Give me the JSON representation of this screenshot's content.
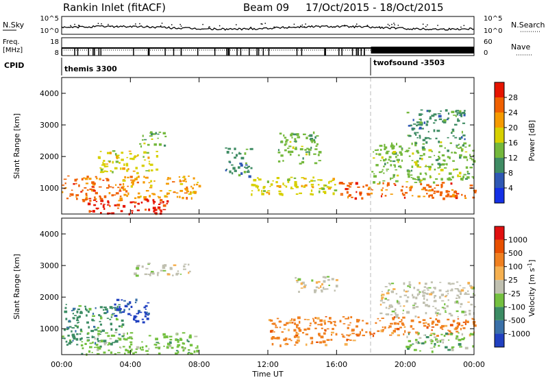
{
  "header": {
    "station": "Rankin Inlet (fitACF)",
    "beam": "Beam 09",
    "date_range": "17/Oct/2015 - 18/Oct/2015"
  },
  "noise_panel": {
    "left_label": "N.Sky",
    "right_label": "N.Search",
    "left_ticks": [
      "10^5",
      "10^0"
    ],
    "right_ticks": [
      "10^5",
      "10^0"
    ]
  },
  "freq_panel": {
    "left_label_line1": "Freq.",
    "left_label_line2": "[MHz]",
    "right_label": "Nave",
    "left_ticks": [
      "18",
      "8"
    ],
    "right_ticks": [
      "60",
      "0"
    ]
  },
  "cpid": {
    "label": "CPID",
    "segments": [
      {
        "name": "themis 3300",
        "start_hour": 0
      },
      {
        "name": "twofsound -3503",
        "start_hour": 18
      }
    ]
  },
  "time_axis": {
    "label": "Time UT",
    "ticks": [
      "00:00",
      "04:00",
      "08:00",
      "12:00",
      "16:00",
      "20:00",
      "00:00"
    ]
  },
  "range_axis": {
    "label": "Slant Range [km]",
    "ticks": [
      "1000",
      "2000",
      "3000",
      "4000"
    ]
  },
  "power_scale": {
    "title": "Power [dB]",
    "labels": [
      "4",
      "8",
      "12",
      "16",
      "20",
      "24",
      "28"
    ],
    "colors": [
      "#1430e6",
      "#2f58b4",
      "#3f8c64",
      "#74b83c",
      "#d7d000",
      "#f59a00",
      "#f06000",
      "#e61400"
    ]
  },
  "velocity_scale": {
    "title": "Velocity [m s",
    "title_sup": "-1",
    "title_end": "]",
    "labels": [
      "1000",
      "500",
      "100",
      "25",
      "-25",
      "-100",
      "-500",
      "-1000"
    ],
    "colors": [
      "#2040c0",
      "#3a70a8",
      "#3c8c64",
      "#74c040",
      "#c0c0b0",
      "#f5b050",
      "#f08020",
      "#e85000",
      "#e01010"
    ]
  },
  "chart_data": {
    "type": "heatmap",
    "title": "Rankin Inlet (fitACF)",
    "x_range_hours": [
      0,
      24
    ],
    "y_range_km": [
      180,
      4500
    ],
    "power_regions": [
      {
        "x": [
          0.0,
          3.5
        ],
        "y": [
          600,
          1400
        ],
        "level": 6
      },
      {
        "x": [
          1.5,
          6.5
        ],
        "y": [
          200,
          700
        ],
        "level": 7
      },
      {
        "x": [
          3.5,
          8.0
        ],
        "y": [
          700,
          1400
        ],
        "level": 5
      },
      {
        "x": [
          2.0,
          5.5
        ],
        "y": [
          1500,
          2200
        ],
        "level": 4
      },
      {
        "x": [
          4.5,
          6.0
        ],
        "y": [
          2300,
          2800
        ],
        "level": 3
      },
      {
        "x": [
          9.5,
          11.0
        ],
        "y": [
          1400,
          2300
        ],
        "level": 2
      },
      {
        "x": [
          11.0,
          16.0
        ],
        "y": [
          800,
          1400
        ],
        "level": 4
      },
      {
        "x": [
          12.5,
          15.0
        ],
        "y": [
          1800,
          2800
        ],
        "level": 3
      },
      {
        "x": [
          16.0,
          24.0
        ],
        "y": [
          700,
          1200
        ],
        "level": 6
      },
      {
        "x": [
          18.0,
          24.0
        ],
        "y": [
          1200,
          2500
        ],
        "level": 3
      },
      {
        "x": [
          20.0,
          23.5
        ],
        "y": [
          2500,
          3500
        ],
        "level": 2
      }
    ],
    "velocity_regions": [
      {
        "x": [
          0.0,
          3.5
        ],
        "y": [
          500,
          1800
        ],
        "level": 2
      },
      {
        "x": [
          3.0,
          5.0
        ],
        "y": [
          1200,
          2000
        ],
        "level": 0
      },
      {
        "x": [
          1.0,
          8.0
        ],
        "y": [
          200,
          900
        ],
        "level": 3
      },
      {
        "x": [
          4.0,
          7.5
        ],
        "y": [
          2700,
          3100
        ],
        "level": 4
      },
      {
        "x": [
          12.0,
          17.0
        ],
        "y": [
          500,
          1400
        ],
        "level": 6
      },
      {
        "x": [
          13.5,
          16.0
        ],
        "y": [
          2200,
          2700
        ],
        "level": 4
      },
      {
        "x": [
          17.0,
          24.0
        ],
        "y": [
          800,
          1400
        ],
        "level": 6
      },
      {
        "x": [
          18.5,
          24.0
        ],
        "y": [
          1400,
          2500
        ],
        "level": 4
      },
      {
        "x": [
          20.0,
          24.0
        ],
        "y": [
          300,
          900
        ],
        "level": 3
      }
    ]
  }
}
